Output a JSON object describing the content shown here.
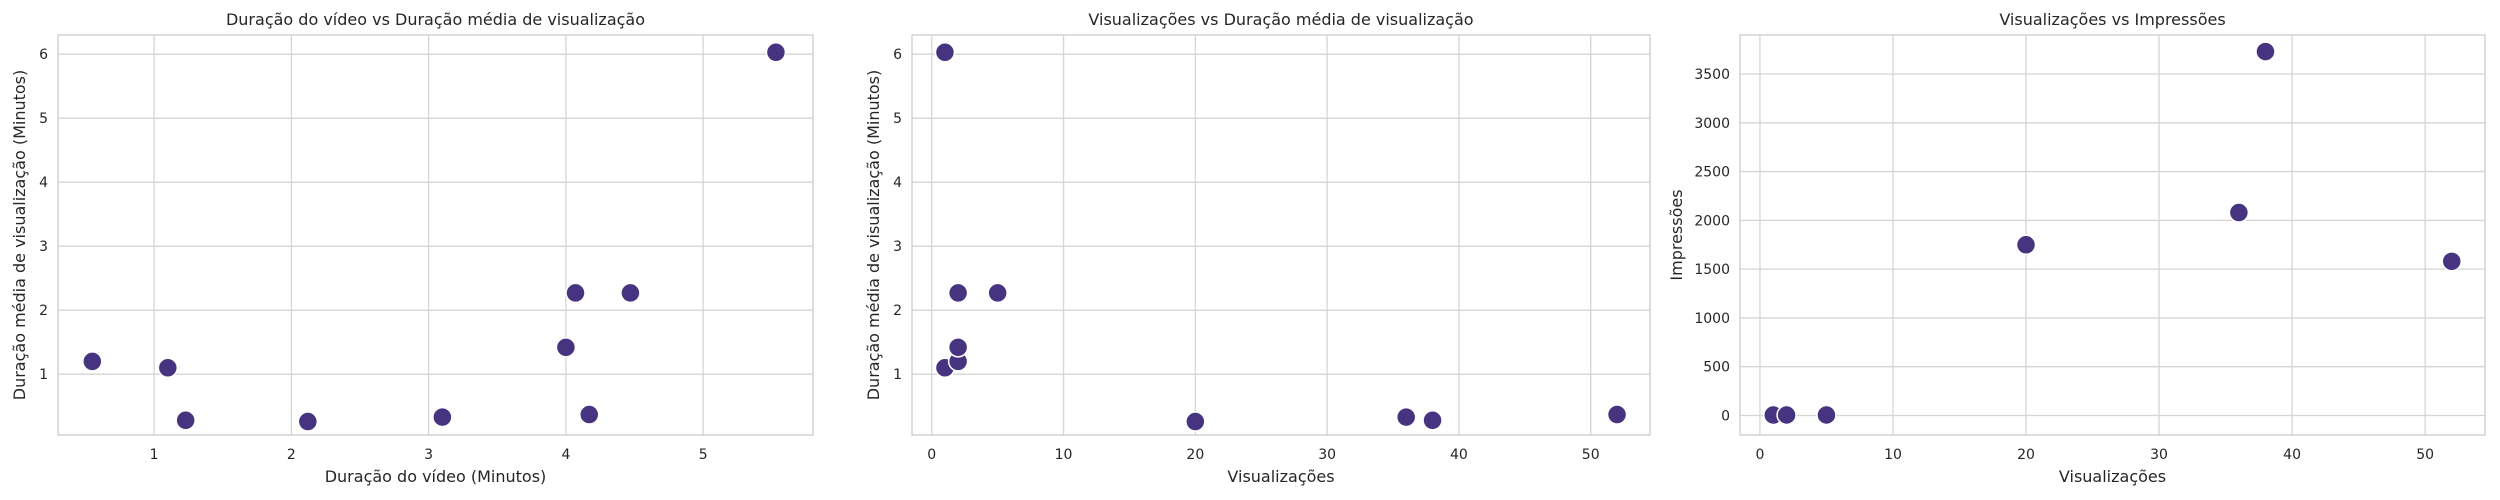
{
  "chart_data": [
    {
      "type": "scatter",
      "title": "Duração do vídeo vs Duração média de visualização",
      "xlabel": "Duração do vídeo (Minutos)",
      "ylabel": "Duração média de visualização (Minutos)",
      "xlim": [
        0.3,
        5.8
      ],
      "ylim": [
        0.05,
        6.3
      ],
      "xticks": [
        1,
        2,
        3,
        4,
        5
      ],
      "yticks": [
        1,
        2,
        3,
        4,
        5,
        6
      ],
      "grid": true,
      "color": "#463480",
      "points": [
        {
          "x": 0.55,
          "y": 1.2
        },
        {
          "x": 1.1,
          "y": 1.1
        },
        {
          "x": 1.23,
          "y": 0.28
        },
        {
          "x": 2.12,
          "y": 0.26
        },
        {
          "x": 3.1,
          "y": 0.33
        },
        {
          "x": 4.0,
          "y": 1.42
        },
        {
          "x": 4.07,
          "y": 2.27
        },
        {
          "x": 4.17,
          "y": 0.37
        },
        {
          "x": 4.47,
          "y": 2.27
        },
        {
          "x": 5.53,
          "y": 6.03
        }
      ]
    },
    {
      "type": "scatter",
      "title": "Visualizações vs Duração média de visualização",
      "xlabel": "Visualizações",
      "ylabel": "Duração média de visualização (Minutos)",
      "xlim": [
        -1.5,
        54.5
      ],
      "ylim": [
        0.05,
        6.3
      ],
      "xticks": [
        0,
        10,
        20,
        30,
        40,
        50
      ],
      "yticks": [
        1,
        2,
        3,
        4,
        5,
        6
      ],
      "grid": true,
      "color": "#463480",
      "points": [
        {
          "x": 1,
          "y": 6.03
        },
        {
          "x": 1,
          "y": 1.1
        },
        {
          "x": 2,
          "y": 1.2
        },
        {
          "x": 2,
          "y": 1.42
        },
        {
          "x": 2,
          "y": 2.27
        },
        {
          "x": 5,
          "y": 2.27
        },
        {
          "x": 20,
          "y": 0.26
        },
        {
          "x": 36,
          "y": 0.33
        },
        {
          "x": 38,
          "y": 0.28
        },
        {
          "x": 52,
          "y": 0.37
        }
      ]
    },
    {
      "type": "scatter",
      "title": "Visualizações vs Impressões",
      "xlabel": "Visualizações",
      "ylabel": "Impressões",
      "xlim": [
        -1.5,
        54.5
      ],
      "ylim": [
        -200,
        3900
      ],
      "xticks": [
        0,
        10,
        20,
        30,
        40,
        50
      ],
      "yticks": [
        0,
        500,
        1000,
        1500,
        2000,
        2500,
        3000,
        3500
      ],
      "grid": true,
      "color": "#463480",
      "points": [
        {
          "x": 1,
          "y": 5
        },
        {
          "x": 2,
          "y": 5
        },
        {
          "x": 5,
          "y": 5
        },
        {
          "x": 20,
          "y": 1750
        },
        {
          "x": 36,
          "y": 2080
        },
        {
          "x": 38,
          "y": 3730
        },
        {
          "x": 52,
          "y": 1580
        }
      ]
    }
  ]
}
